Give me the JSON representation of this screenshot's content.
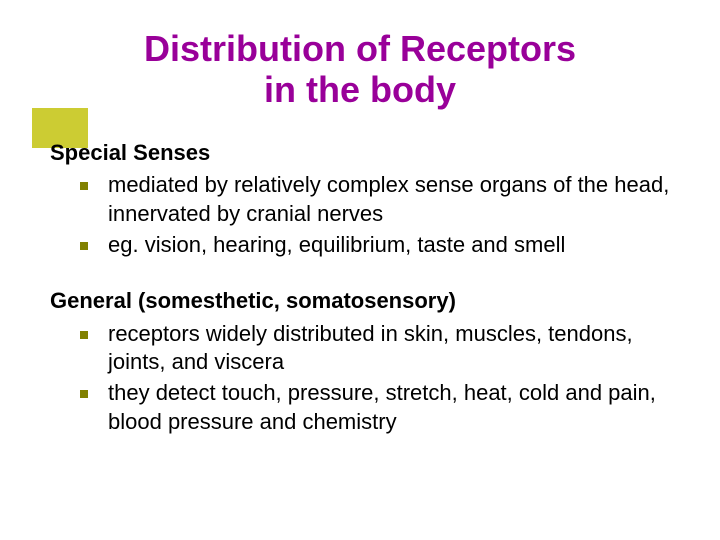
{
  "title_line1": "Distribution of Receptors",
  "title_line2": "in the body",
  "sections": [
    {
      "heading": "Special Senses",
      "bullets": [
        "mediated by relatively complex sense organs of the head, innervated by cranial nerves",
        "eg. vision, hearing, equilibrium, taste and smell"
      ]
    },
    {
      "heading": "General (somesthetic, somatosensory)",
      "bullets": [
        "receptors widely distributed in skin, muscles, tendons, joints, and viscera",
        "they detect touch, pressure, stretch, heat, cold and pain, blood pressure and chemistry"
      ]
    }
  ],
  "colors": {
    "title": "#990099",
    "accent_bar": "#cccc33",
    "bullet_marker": "#808000",
    "text": "#000000",
    "background": "#ffffff"
  },
  "typography": {
    "title_fontsize": 36,
    "heading_fontsize": 22,
    "body_fontsize": 22,
    "font_family": "Verdana"
  }
}
